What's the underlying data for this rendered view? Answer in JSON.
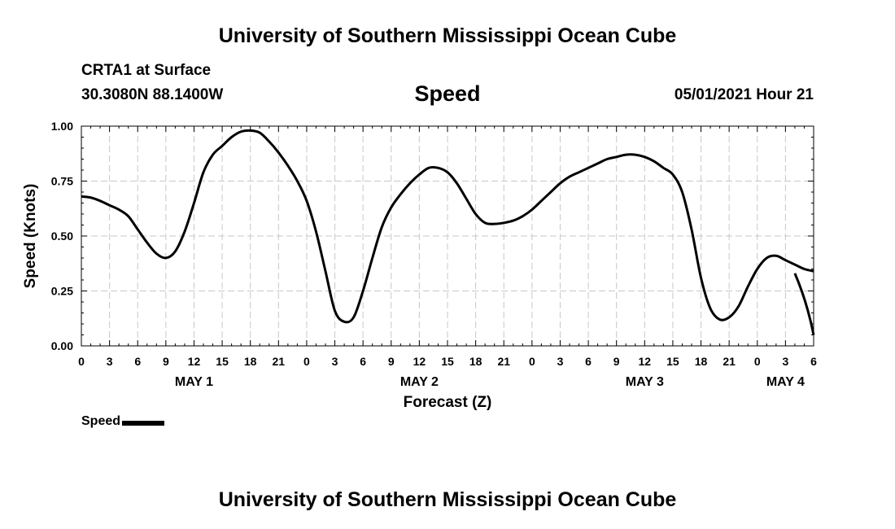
{
  "header": {
    "title": "University of Southern Mississippi Ocean Cube",
    "station": "CRTA1 at Surface",
    "coords": "30.3080N  88.1400W",
    "subtitle": "Speed",
    "timestamp": "05/01/2021 Hour 21"
  },
  "footer": {
    "title": "University of Southern Mississippi Ocean Cube"
  },
  "legend": {
    "label": "Speed",
    "color": "#000000"
  },
  "chart_data": {
    "type": "line",
    "title": "Speed",
    "xlabel": "Forecast (Z)",
    "ylabel": "Speed (Knots)",
    "xlim": [
      0,
      78
    ],
    "ylim": [
      0,
      1
    ],
    "grid": true,
    "y_ticks": [
      0,
      0.25,
      0.5,
      0.75,
      1.0
    ],
    "y_tick_labels": [
      "0.00",
      "0.25",
      "0.50",
      "0.75",
      "1.00"
    ],
    "x_tick_labels": [
      "0",
      "3",
      "6",
      "9",
      "12",
      "15",
      "18",
      "21",
      "0",
      "3",
      "6",
      "9",
      "12",
      "15",
      "18",
      "21",
      "0",
      "3",
      "6",
      "9",
      "12",
      "15",
      "18",
      "21",
      "0",
      "3",
      "6"
    ],
    "day_labels": [
      {
        "label": "MAY 1",
        "x": 12
      },
      {
        "label": "MAY 2",
        "x": 36
      },
      {
        "label": "MAY 3",
        "x": 60
      },
      {
        "label": "MAY 4",
        "x": 75
      }
    ],
    "series": [
      {
        "name": "Speed",
        "x": [
          0,
          1,
          2,
          3,
          4,
          5,
          6,
          7,
          8,
          9,
          10,
          11,
          12,
          13,
          14,
          15,
          16,
          17,
          18,
          19,
          20,
          21,
          22,
          23,
          24,
          25,
          26,
          27,
          28,
          29,
          30,
          31,
          32,
          33,
          34,
          35,
          36,
          37,
          38,
          39,
          40,
          41,
          42,
          43,
          44,
          45,
          46,
          47,
          48,
          49,
          50,
          51,
          52,
          53,
          54,
          55,
          56,
          57,
          58,
          59,
          60,
          61,
          62,
          63,
          64,
          65,
          66,
          67,
          68,
          69,
          70,
          71,
          72,
          73,
          74,
          75,
          76,
          77,
          78
        ],
        "values": [
          0.68,
          0.675,
          0.66,
          0.64,
          0.62,
          0.59,
          0.53,
          0.47,
          0.42,
          0.4,
          0.43,
          0.52,
          0.65,
          0.79,
          0.87,
          0.91,
          0.95,
          0.975,
          0.98,
          0.97,
          0.93,
          0.88,
          0.82,
          0.75,
          0.66,
          0.52,
          0.34,
          0.16,
          0.11,
          0.13,
          0.25,
          0.4,
          0.54,
          0.63,
          0.69,
          0.74,
          0.78,
          0.81,
          0.81,
          0.79,
          0.74,
          0.67,
          0.6,
          0.56,
          0.555,
          0.56,
          0.57,
          0.59,
          0.62,
          0.66,
          0.7,
          0.74,
          0.77,
          0.79,
          0.81,
          0.83,
          0.85,
          0.86,
          0.87,
          0.87,
          0.86,
          0.84,
          0.81,
          0.78,
          0.7,
          0.53,
          0.31,
          0.17,
          0.12,
          0.13,
          0.18,
          0.27,
          0.35,
          0.4,
          0.41,
          0.39,
          0.37,
          0.35,
          0.34
        ]
      }
    ],
    "tail": {
      "x": [
        78
      ],
      "values": [
        0.05
      ]
    }
  }
}
